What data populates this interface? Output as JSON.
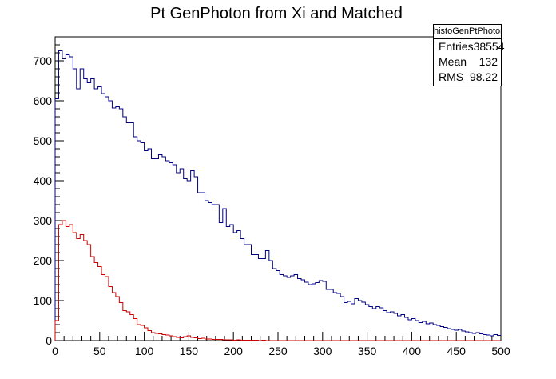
{
  "chart_data": {
    "type": "histogram",
    "title": "Pt GenPhoton from Xi and Matched",
    "xlim": [
      0,
      500
    ],
    "ylim": [
      0,
      760
    ],
    "bin_width": 4,
    "x_ticks": [
      0,
      50,
      100,
      150,
      200,
      250,
      300,
      350,
      400,
      450,
      500
    ],
    "y_ticks": [
      0,
      100,
      200,
      300,
      400,
      500,
      600,
      700
    ],
    "grid": false,
    "series": [
      {
        "color": "#000080",
        "values": [
          605,
          725,
          705,
          715,
          710,
          680,
          630,
          680,
          655,
          645,
          655,
          630,
          635,
          618,
          610,
          600,
          582,
          585,
          580,
          560,
          545,
          545,
          510,
          500,
          495,
          475,
          480,
          455,
          455,
          465,
          460,
          450,
          445,
          440,
          420,
          430,
          405,
          400,
          425,
          410,
          370,
          370,
          350,
          345,
          340,
          340,
          295,
          330,
          285,
          290,
          270,
          275,
          255,
          240,
          240,
          215,
          215,
          205,
          205,
          225,
          200,
          180,
          175,
          165,
          162,
          158,
          162,
          165,
          155,
          152,
          146,
          140,
          142,
          145,
          150,
          148,
          128,
          128,
          120,
          118,
          110,
          95,
          98,
          92,
          105,
          100,
          96,
          90,
          85,
          80,
          85,
          82,
          75,
          70,
          72,
          68,
          62,
          65,
          58,
          52,
          55,
          50,
          45,
          48,
          42,
          44,
          40,
          38,
          35,
          33,
          30,
          28,
          26,
          28,
          24,
          22,
          20,
          18,
          20,
          17,
          15,
          14,
          12,
          15,
          13
        ]
      },
      {
        "color": "#cc0000",
        "values": [
          50,
          290,
          300,
          285,
          290,
          270,
          255,
          265,
          250,
          240,
          210,
          195,
          185,
          165,
          160,
          135,
          120,
          110,
          95,
          75,
          72,
          65,
          55,
          40,
          38,
          32,
          25,
          20,
          18,
          17,
          15,
          14,
          12,
          10,
          8,
          7,
          10,
          12,
          8,
          7,
          5,
          6,
          4,
          4,
          3,
          3,
          3,
          2,
          2,
          2,
          1,
          2,
          1,
          1,
          1,
          1,
          1,
          0,
          1,
          0,
          0,
          0,
          0,
          0,
          0,
          0,
          0,
          0,
          0,
          0,
          0,
          0,
          0,
          0,
          0,
          0,
          0,
          0,
          0,
          0,
          0,
          0,
          0,
          0,
          0,
          0,
          0,
          0,
          0,
          0,
          0,
          0,
          0,
          0,
          0,
          0,
          0,
          0,
          0,
          0,
          0,
          0,
          0,
          0,
          0,
          0,
          0,
          0,
          0,
          0,
          0,
          0,
          0,
          0,
          0,
          0,
          0,
          0,
          0,
          0,
          0,
          0,
          0,
          0,
          0
        ]
      }
    ]
  },
  "stats_box": {
    "name": "histoGenPtPhotonfromX",
    "entries_label": "Entries",
    "entries_value": "38554",
    "mean_label": "Mean",
    "mean_value": "132",
    "rms_label": "RMS",
    "rms_value": "98.22"
  }
}
